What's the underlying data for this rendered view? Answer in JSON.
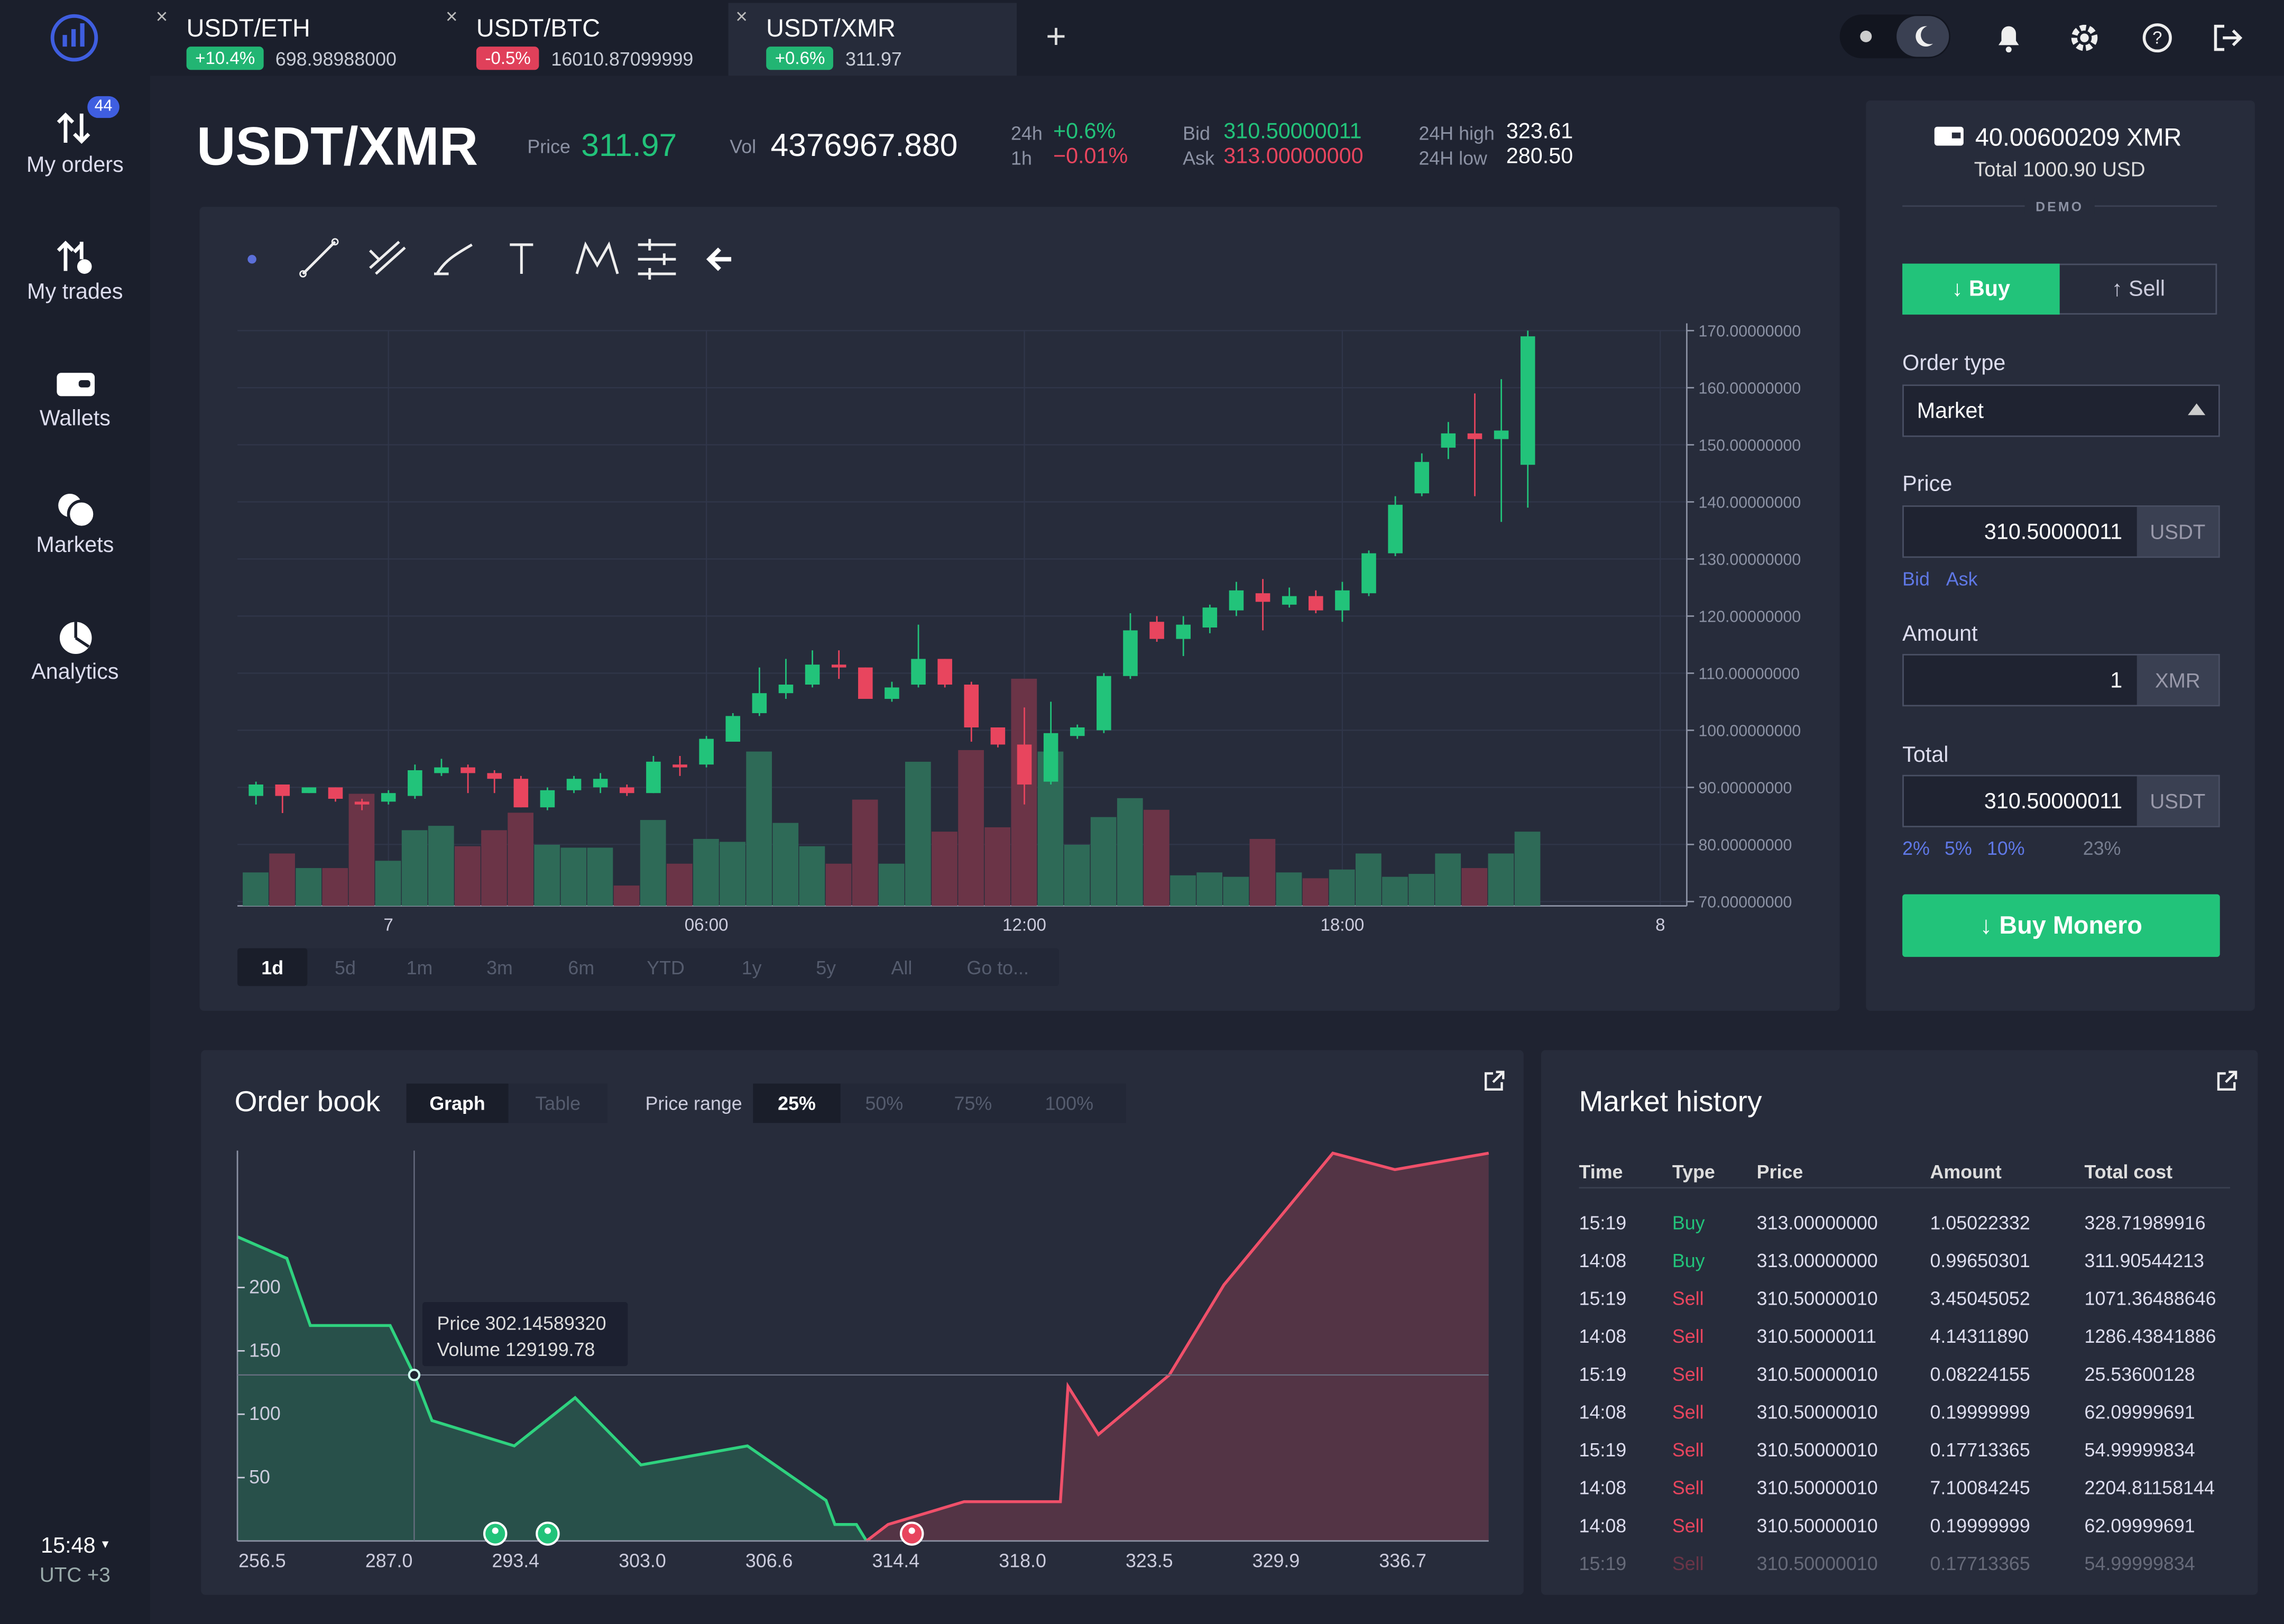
{
  "top_bar": {
    "tabs": [
      {
        "pair": "USDT/ETH",
        "change": "+10.4%",
        "price": "698.98988000",
        "color": "#22b573"
      },
      {
        "pair": "USDT/BTC",
        "change": "-0.5%",
        "price": "16010.87099999",
        "color": "#e0405a"
      },
      {
        "pair": "USDT/XMR",
        "change": "+0.6%",
        "price": "311.97",
        "color": "#22b573"
      }
    ]
  },
  "sidebar": {
    "items": [
      "My orders",
      "My trades",
      "Wallets",
      "Markets",
      "Analytics"
    ],
    "badge": "44",
    "time": "15:48",
    "timezone": "UTC +3"
  },
  "header": {
    "pair": "USDT/XMR",
    "price_label": "Price",
    "price": "311.97",
    "vol_label": "Vol",
    "vol": "4376967.880",
    "change_24h_label": "24h",
    "change_24h": "+0.6%",
    "change_1h_label": "1h",
    "change_1h": "−0.01%",
    "bid_label": "Bid",
    "bid": "310.50000011",
    "ask_label": "Ask",
    "ask": "313.00000000",
    "high_label": "24H high",
    "high": "323.61",
    "low_label": "24H low",
    "low": "280.50"
  },
  "price_chart": {
    "type": "candlestick",
    "up_color": "#22c37a",
    "down_color": "#e8455e",
    "up_volume_color": "#2e6a57",
    "down_volume_color": "#6b3447",
    "x": [
      -2.5,
      -2,
      -1.5,
      -1,
      -0.5,
      0,
      0.5,
      1,
      1.5,
      2,
      2.5,
      3,
      3.5,
      4,
      4.5,
      5,
      5.5,
      6,
      6.5,
      7,
      7.5,
      8,
      8.5,
      9,
      9.5,
      10,
      10.5,
      11,
      11.5,
      12,
      12.5,
      13,
      13.5,
      14,
      14.5,
      15,
      15.5,
      16,
      16.5,
      17,
      17.5,
      18,
      18.5,
      19,
      19.5,
      20,
      20.5,
      21,
      21.5
    ],
    "open": [
      88.5,
      90.5,
      89,
      90,
      87.5,
      87.5,
      88.5,
      92.5,
      93.5,
      92.5,
      91.5,
      86.5,
      89.5,
      90,
      90,
      89,
      94,
      94,
      98,
      103,
      106.5,
      108,
      111.5,
      111,
      105.5,
      108,
      112.5,
      108,
      100.5,
      97.5,
      91,
      99,
      100,
      109.5,
      119,
      116,
      118,
      121,
      124,
      122,
      123.5,
      121,
      124,
      131,
      141.5,
      149.5,
      152,
      151,
      146.5
    ],
    "high": [
      91,
      90.5,
      90,
      90,
      88,
      89.5,
      94,
      95,
      94,
      93,
      92,
      90,
      92,
      92.5,
      90.5,
      95.5,
      95.5,
      99,
      103,
      111,
      112.5,
      114,
      114,
      111,
      108.5,
      118.5,
      112.5,
      108.5,
      100.5,
      104,
      105,
      101,
      110,
      120.5,
      120,
      120,
      122,
      126,
      126.5,
      125,
      124.5,
      126,
      131.5,
      141,
      148.5,
      154,
      159,
      161.5,
      170
    ],
    "low": [
      87,
      85.5,
      89,
      87.5,
      86,
      87,
      88,
      92,
      89,
      89,
      86.5,
      86,
      89,
      89,
      88.5,
      89,
      92,
      93.5,
      98,
      102.5,
      105.5,
      107.5,
      109,
      105.5,
      105,
      107.5,
      107.5,
      98,
      97,
      87,
      90.5,
      98.5,
      99.5,
      109,
      115.5,
      113,
      117,
      120,
      117.5,
      121.5,
      120.5,
      119,
      123.5,
      130.5,
      141,
      147.5,
      141,
      136.5,
      139
    ],
    "close": [
      90.5,
      88.5,
      90,
      88,
      87,
      89,
      93,
      93.5,
      92.5,
      91.5,
      86.5,
      89.5,
      91.5,
      91.5,
      89,
      94.5,
      93.5,
      98.5,
      102.5,
      106.5,
      108,
      111.5,
      111,
      105.5,
      107.5,
      112.5,
      108,
      100.5,
      97.5,
      90.5,
      99.5,
      100.5,
      109.5,
      117.5,
      116,
      118.5,
      121.5,
      124.5,
      122.5,
      123.5,
      121,
      124.5,
      131,
      139.5,
      147,
      152,
      151,
      152.5,
      169
    ],
    "volume": [
      23,
      36,
      26,
      26,
      77,
      31,
      52,
      55,
      41,
      52,
      64,
      42,
      40,
      40,
      14,
      59,
      29,
      46,
      44,
      106,
      57,
      41,
      29,
      73,
      29,
      99,
      51,
      107,
      54,
      156,
      106,
      42,
      61,
      74,
      66,
      21,
      23,
      20,
      46,
      23,
      19,
      25,
      36,
      20,
      22,
      36,
      26,
      36,
      51
    ],
    "ylim": [
      70,
      170
    ],
    "yticks": [
      {
        "value": 70,
        "label": "70.00000000"
      },
      {
        "value": 80,
        "label": "80.00000000"
      },
      {
        "value": 90,
        "label": "90.00000000"
      },
      {
        "value": 100,
        "label": "100.00000000"
      },
      {
        "value": 110,
        "label": "110.00000000"
      },
      {
        "value": 120,
        "label": "120.00000000"
      },
      {
        "value": 130,
        "label": "130.00000000"
      },
      {
        "value": 140,
        "label": "140.00000000"
      },
      {
        "value": 150,
        "label": "150.00000000"
      },
      {
        "value": 160,
        "label": "160.00000000"
      },
      {
        "value": 170,
        "label": "170.00000000"
      }
    ],
    "xlim": [
      -2.85,
      24.5
    ],
    "xticks": [
      {
        "value": 0,
        "label": "7"
      },
      {
        "value": 6,
        "label": "06:00"
      },
      {
        "value": 12,
        "label": "12:00"
      },
      {
        "value": 18,
        "label": "18:00"
      },
      {
        "value": 24,
        "label": "8"
      }
    ],
    "grid": true,
    "ranges": [
      "1d",
      "5d",
      "1m",
      "3m",
      "6m",
      "YTD",
      "1y",
      "5y",
      "All",
      "Go to..."
    ]
  },
  "order_book": {
    "title": "Order book",
    "views": [
      "Graph",
      "Table"
    ],
    "range_label": "Price range",
    "ranges": [
      "25%",
      "50%",
      "75%",
      "100%"
    ],
    "depth": {
      "type": "area",
      "x_labels": [
        "256.5",
        "287.0",
        "293.4",
        "303.0",
        "306.6",
        "314.4",
        "318.0",
        "323.5",
        "329.9",
        "336.7"
      ],
      "xlim": [
        -0.195,
        9.68
      ],
      "ylim": [
        0,
        308
      ],
      "yticks": [
        50,
        100,
        150,
        200
      ],
      "bids": {
        "color": "#2fd27f",
        "x": [
          -0.195,
          0.195,
          0.38,
          1.01,
          1.2,
          1.34,
          1.99,
          2.47,
          2.99,
          3.83,
          4.45,
          4.52,
          4.69,
          4.77
        ],
        "y": [
          240,
          223,
          170,
          170,
          131,
          95,
          75,
          113,
          60,
          75,
          32,
          13,
          13,
          0
        ]
      },
      "asks": {
        "color": "#f0506a",
        "x": [
          4.77,
          4.94,
          5.54,
          6.3,
          6.36,
          6.6,
          7.16,
          7.59,
          8.45,
          8.94,
          9.68
        ],
        "y": [
          0,
          13,
          31,
          31,
          122,
          84,
          131,
          202,
          306,
          293,
          306
        ]
      }
    },
    "tooltip": {
      "price_label": "Price",
      "price": "302.14589320",
      "volume_label": "Volume",
      "volume": "129199.78"
    }
  },
  "market_history": {
    "title": "Market history",
    "columns": [
      "Time",
      "Type",
      "Price",
      "Amount",
      "Total cost"
    ],
    "type_colors": {
      "Buy": "#22c37a",
      "Sell": "#e8455e"
    },
    "rows": [
      [
        "15:19",
        "Buy",
        "313.00000000",
        "1.05022332",
        "328.71989916"
      ],
      [
        "14:08",
        "Buy",
        "313.00000000",
        "0.99650301",
        "311.90544213"
      ],
      [
        "15:19",
        "Sell",
        "310.50000010",
        "3.45045052",
        "1071.36488646"
      ],
      [
        "14:08",
        "Sell",
        "310.50000011",
        "4.14311890",
        "1286.43841886"
      ],
      [
        "15:19",
        "Sell",
        "310.50000010",
        "0.08224155",
        "25.53600128"
      ],
      [
        "14:08",
        "Sell",
        "310.50000010",
        "0.19999999",
        "62.09999691"
      ],
      [
        "15:19",
        "Sell",
        "310.50000010",
        "0.17713365",
        "54.99999834"
      ],
      [
        "14:08",
        "Sell",
        "310.50000010",
        "7.10084245",
        "2204.81158144"
      ],
      [
        "14:08",
        "Sell",
        "310.50000010",
        "0.19999999",
        "62.09999691"
      ],
      [
        "15:19",
        "Sell",
        "310.50000010",
        "0.17713365",
        "54.99999834"
      ]
    ]
  },
  "order_form": {
    "balance": "40.00600209 XMR",
    "total": "Total 1000.90 USD",
    "mode": "DEMO",
    "buy": "Buy",
    "sell": "Sell",
    "order_type_label": "Order type",
    "order_type": "Market",
    "price_label": "Price",
    "price": "310.50000011",
    "price_unit": "USDT",
    "bid": "Bid",
    "ask": "Ask",
    "amount_label": "Amount",
    "amount": "1",
    "amount_unit": "XMR",
    "total_label": "Total",
    "total_value": "310.50000011",
    "total_unit": "USDT",
    "percents": [
      "2%",
      "5%",
      "10%"
    ],
    "fee": "23%",
    "submit": "Buy Monero"
  }
}
